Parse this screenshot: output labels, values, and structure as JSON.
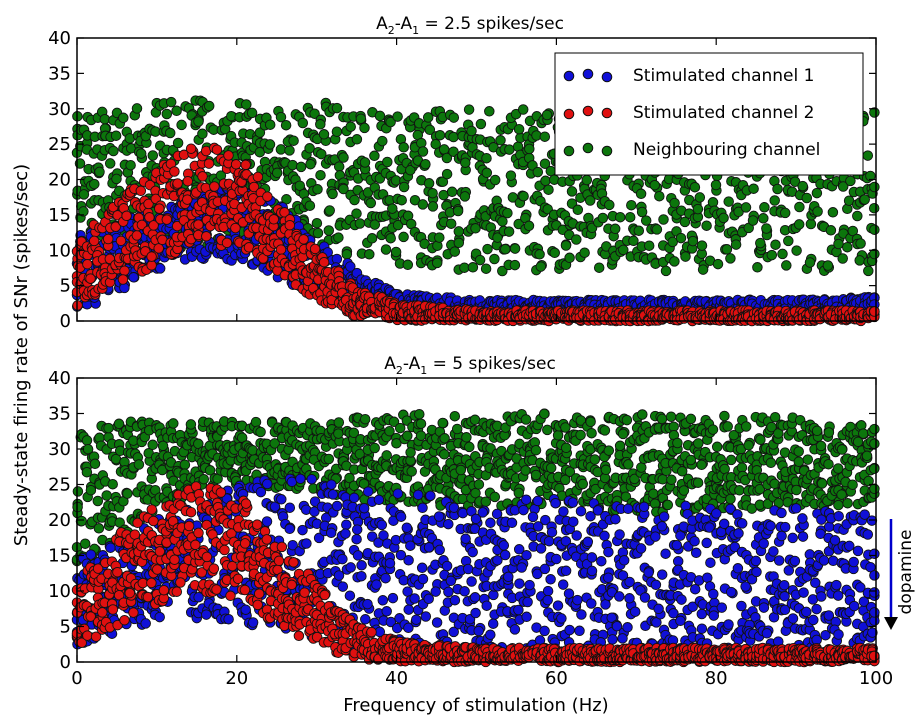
{
  "figure": {
    "ylabel": "Steady-state firing rate of SNr (spikes/sec)",
    "xlabel": "Frequency of stimulation (Hz)",
    "side_annotation": "dopamine",
    "colors": {
      "stimulated_channel_1": "#1010d8",
      "stimulated_channel_2": "#e01010",
      "neighbouring_channel": "#0c760c",
      "dopamine_arrow": "#0000cc"
    }
  },
  "chart_data": [
    {
      "type": "scatter",
      "title_prefix": "A",
      "title_sub_a": "2",
      "title_mid": "-A",
      "title_sub_b": "1",
      "title_suffix": " = 2.5 spikes/sec",
      "xlim": [
        0,
        100
      ],
      "ylim": [
        0,
        40
      ],
      "x_ticks": [
        0,
        20,
        40,
        60,
        80,
        100
      ],
      "y_ticks": [
        0,
        5,
        10,
        15,
        20,
        25,
        30,
        35,
        40
      ],
      "show_x_tick_labels": false,
      "legend": {
        "placement": "top-right",
        "entries": [
          "Stimulated channel 1",
          "Stimulated channel 2",
          "Neighbouring channel"
        ]
      },
      "series": [
        {
          "name": "Neighbouring channel",
          "color": "#0c760c",
          "x": [
            0,
            5,
            10,
            15,
            20,
            30,
            40,
            50,
            60,
            70,
            80,
            90,
            100
          ],
          "y_low": [
            13,
            11,
            10,
            10,
            10,
            10,
            8,
            7,
            7,
            7,
            7,
            7,
            7
          ],
          "y_high": [
            29,
            30,
            31,
            32,
            31,
            31,
            30,
            30,
            30,
            30,
            30,
            30,
            30
          ]
        },
        {
          "name": "Stimulated channel 1",
          "color": "#1010d8",
          "x": [
            0,
            5,
            10,
            15,
            20,
            25,
            30,
            35,
            40,
            50,
            60,
            70,
            80,
            90,
            100
          ],
          "y_low": [
            1,
            4,
            7,
            8.5,
            8.5,
            6,
            3.5,
            1.5,
            1,
            0.5,
            0.5,
            0.5,
            0.5,
            0.5,
            0.5
          ],
          "y_high": [
            12,
            14,
            16,
            18,
            19,
            17,
            12,
            7,
            4,
            3,
            3,
            3,
            3,
            3,
            3.5
          ]
        },
        {
          "name": "Stimulated channel 2",
          "color": "#e01010",
          "x": [
            0,
            5,
            10,
            15,
            20,
            25,
            30,
            35,
            40,
            50,
            60,
            70,
            80,
            90,
            100
          ],
          "y_low": [
            2,
            5,
            8,
            11,
            10,
            7,
            3,
            0.5,
            0,
            0,
            0,
            0,
            0,
            0,
            0
          ],
          "y_high": [
            11,
            17,
            22,
            25,
            24,
            17,
            10,
            5,
            2.5,
            1.5,
            1.5,
            1.5,
            1.5,
            1.5,
            1.5
          ]
        }
      ]
    },
    {
      "type": "scatter",
      "title_prefix": "A",
      "title_sub_a": "2",
      "title_mid": "-A",
      "title_sub_b": "1",
      "title_suffix": " = 5 spikes/sec",
      "xlim": [
        0,
        100
      ],
      "ylim": [
        0,
        40
      ],
      "x_ticks": [
        0,
        20,
        40,
        60,
        80,
        100
      ],
      "y_ticks": [
        0,
        5,
        10,
        15,
        20,
        25,
        30,
        35,
        40
      ],
      "show_x_tick_labels": true,
      "series": [
        {
          "name": "Neighbouring channel",
          "color": "#0c760c",
          "x": [
            0,
            5,
            10,
            15,
            20,
            30,
            40,
            50,
            60,
            70,
            80,
            90,
            100
          ],
          "y_low": [
            14,
            17,
            21,
            24,
            25,
            24,
            22,
            22,
            22,
            21,
            21,
            22,
            22
          ],
          "y_high": [
            32,
            34,
            34,
            34,
            34,
            34,
            35,
            35,
            35,
            35,
            35,
            35,
            33
          ]
        },
        {
          "name": "Stimulated channel 1",
          "color": "#1010d8",
          "x": [
            0,
            5,
            10,
            15,
            20,
            25,
            30,
            35,
            40,
            50,
            60,
            70,
            80,
            90,
            100
          ],
          "y_low": [
            2,
            4,
            6,
            6,
            6,
            4,
            2,
            1,
            1,
            1,
            1,
            1,
            1,
            1,
            1
          ],
          "y_high": [
            15,
            17,
            20,
            22,
            25,
            26,
            26,
            25,
            24,
            23,
            23,
            22,
            22,
            22,
            21
          ]
        },
        {
          "name": "Stimulated channel 2",
          "color": "#e01010",
          "x": [
            0,
            5,
            10,
            15,
            20,
            25,
            30,
            35,
            40,
            50,
            60,
            70,
            80,
            90,
            100
          ],
          "y_low": [
            2,
            5,
            8,
            10,
            9,
            5,
            2,
            0.5,
            0,
            0,
            0,
            0,
            0,
            0,
            0
          ],
          "y_high": [
            12,
            18,
            22,
            25,
            24,
            17,
            11,
            5,
            3,
            2,
            2,
            2,
            2,
            2,
            2
          ]
        }
      ]
    }
  ]
}
